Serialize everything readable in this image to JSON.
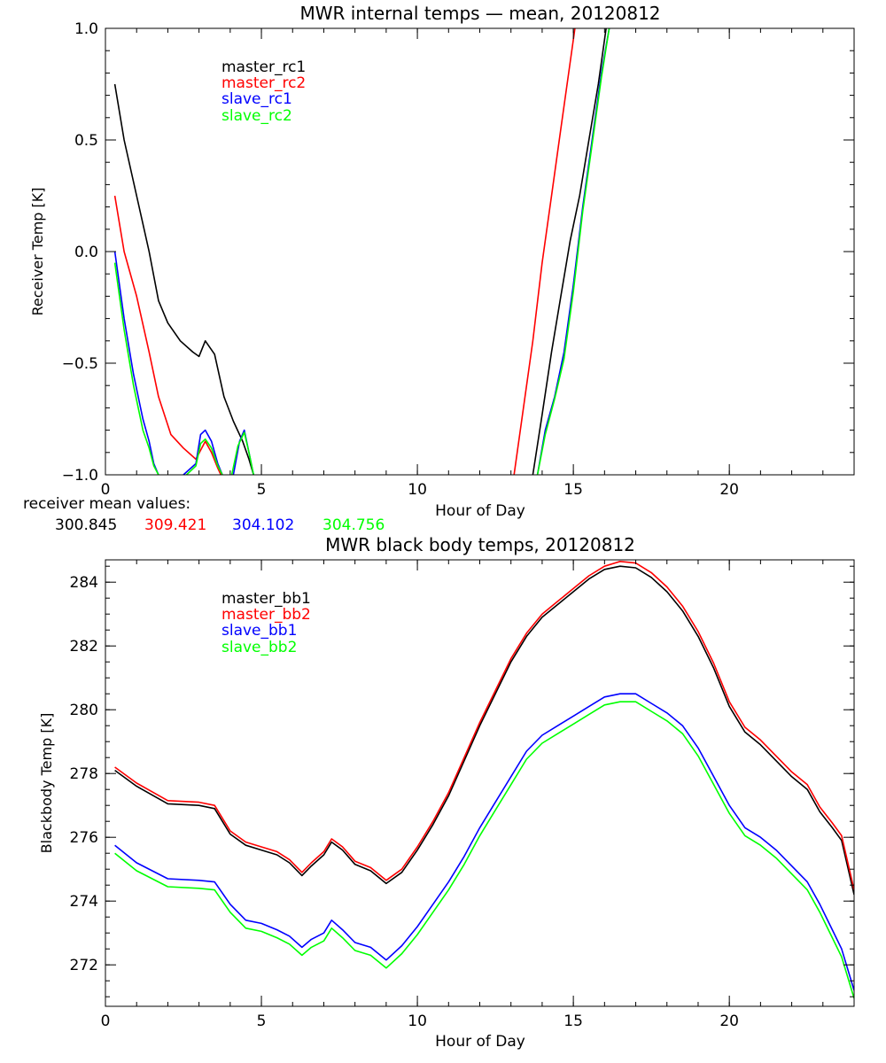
{
  "chart_data": [
    {
      "type": "line",
      "title": "MWR internal temps — mean, 20120812",
      "xlabel": "Hour of Day",
      "ylabel": "Receiver Temp [K]",
      "xlim": [
        0,
        24
      ],
      "ylim": [
        -1.0,
        1.0
      ],
      "x_ticks": [
        0,
        5,
        10,
        15,
        20
      ],
      "y_ticks": [
        -1.0,
        -0.5,
        0.0,
        0.5,
        1.0
      ],
      "y_tick_labels": [
        "−1.0",
        "−0.5",
        "0.0",
        "0.5",
        "1.0"
      ],
      "grid": false,
      "legend_position": "top-left",
      "note": {
        "label": "receiver mean values:",
        "values": [
          "300.845",
          "309.421",
          "304.102",
          "304.756"
        ]
      },
      "series": [
        {
          "name": "master_rc1",
          "color": "#000000",
          "x": [
            0.3,
            0.6,
            1.0,
            1.4,
            1.7,
            2.0,
            2.4,
            2.8,
            3.0,
            3.2,
            3.5,
            3.8,
            4.1,
            4.4,
            4.6,
            4.75,
            null,
            13.7,
            14.0,
            14.3,
            14.6,
            14.9,
            15.2,
            15.5,
            15.8,
            16.05
          ],
          "y": [
            0.75,
            0.5,
            0.25,
            0.0,
            -0.22,
            -0.32,
            -0.4,
            -0.45,
            -0.47,
            -0.4,
            -0.46,
            -0.65,
            -0.76,
            -0.85,
            -0.93,
            -1.0,
            null,
            -1.0,
            -0.73,
            -0.45,
            -0.2,
            0.05,
            0.25,
            0.5,
            0.75,
            1.0
          ]
        },
        {
          "name": "master_rc2",
          "color": "#ff0000",
          "x": [
            0.3,
            0.6,
            1.0,
            1.4,
            1.7,
            2.1,
            2.5,
            2.9,
            3.2,
            3.4,
            3.6,
            3.7,
            null,
            13.1,
            13.4,
            13.7,
            14.0,
            14.3,
            14.6,
            14.9,
            15.05
          ],
          "y": [
            0.25,
            0.0,
            -0.2,
            -0.45,
            -0.65,
            -0.82,
            -0.88,
            -0.93,
            -0.85,
            -0.9,
            -0.97,
            -1.0,
            null,
            -1.0,
            -0.7,
            -0.4,
            -0.05,
            0.25,
            0.55,
            0.85,
            1.0
          ]
        },
        {
          "name": "slave_rc1",
          "color": "#0000ff",
          "x": [
            0.3,
            0.6,
            0.9,
            1.2,
            1.4,
            1.55,
            1.7,
            null,
            2.5,
            2.9,
            3.05,
            3.2,
            3.4,
            3.6,
            3.75,
            null,
            4.1,
            4.3,
            4.45,
            4.6,
            4.75,
            null,
            13.85,
            14.1,
            14.4,
            14.7,
            15.0,
            15.3,
            15.6,
            15.9,
            16.15
          ],
          "y": [
            0.0,
            -0.3,
            -0.55,
            -0.75,
            -0.85,
            -0.95,
            -1.0,
            null,
            -1.0,
            -0.95,
            -0.82,
            -0.8,
            -0.85,
            -0.95,
            -1.0,
            null,
            -1.0,
            -0.85,
            -0.8,
            -0.9,
            -1.0,
            null,
            -1.0,
            -0.8,
            -0.65,
            -0.45,
            -0.15,
            0.2,
            0.5,
            0.8,
            1.0
          ]
        },
        {
          "name": "slave_rc2",
          "color": "#00ff00",
          "x": [
            0.3,
            0.6,
            0.9,
            1.2,
            1.4,
            1.55,
            1.7,
            null,
            2.6,
            2.9,
            3.05,
            3.2,
            3.4,
            3.6,
            3.75,
            null,
            4.05,
            4.25,
            4.45,
            4.6,
            4.75,
            null,
            13.85,
            14.1,
            14.4,
            14.7,
            15.0,
            15.3,
            15.6,
            15.9,
            16.15
          ],
          "y": [
            -0.05,
            -0.35,
            -0.6,
            -0.8,
            -0.88,
            -0.96,
            -1.0,
            null,
            -1.0,
            -0.96,
            -0.86,
            -0.84,
            -0.88,
            -0.96,
            -1.0,
            null,
            -1.0,
            -0.87,
            -0.81,
            -0.9,
            -1.0,
            null,
            -1.0,
            -0.82,
            -0.66,
            -0.48,
            -0.18,
            0.18,
            0.48,
            0.78,
            1.0
          ]
        }
      ]
    },
    {
      "type": "line",
      "title": "MWR black body temps, 20120812",
      "xlabel": "Hour of Day",
      "ylabel": "Blackbody Temp [K]",
      "xlim": [
        0,
        24
      ],
      "ylim": [
        270.7,
        284.7
      ],
      "x_ticks": [
        0,
        5,
        10,
        15,
        20
      ],
      "y_ticks": [
        272,
        274,
        276,
        278,
        280,
        282,
        284
      ],
      "grid": false,
      "legend_position": "top-left",
      "series": [
        {
          "name": "master_bb1",
          "color": "#000000",
          "x": [
            0.3,
            1.0,
            2.0,
            3.0,
            3.5,
            4.0,
            4.5,
            5.0,
            5.5,
            5.9,
            6.3,
            6.6,
            7.0,
            7.25,
            7.6,
            8.0,
            8.5,
            9.0,
            9.5,
            10.0,
            10.5,
            11.0,
            11.5,
            12.0,
            12.5,
            13.0,
            13.5,
            14.0,
            14.5,
            15.0,
            15.5,
            16.0,
            16.5,
            17.0,
            17.5,
            18.0,
            18.5,
            19.0,
            19.5,
            20.0,
            20.5,
            21.0,
            21.5,
            22.0,
            22.5,
            22.9,
            23.3,
            23.6,
            24.0
          ],
          "y": [
            278.1,
            277.6,
            277.05,
            277.0,
            276.9,
            276.1,
            275.75,
            275.6,
            275.45,
            275.2,
            274.8,
            275.1,
            275.45,
            275.85,
            275.6,
            275.15,
            274.95,
            274.55,
            274.9,
            275.6,
            276.4,
            277.3,
            278.4,
            279.5,
            280.5,
            281.5,
            282.3,
            282.9,
            283.3,
            283.7,
            284.1,
            284.4,
            284.5,
            284.45,
            284.15,
            283.7,
            283.1,
            282.3,
            281.3,
            280.1,
            279.3,
            278.9,
            278.4,
            277.9,
            277.5,
            276.8,
            276.3,
            275.9,
            274.2
          ]
        },
        {
          "name": "master_bb2",
          "color": "#ff0000",
          "x": [
            0.3,
            1.0,
            2.0,
            3.0,
            3.5,
            4.0,
            4.5,
            5.0,
            5.5,
            5.9,
            6.3,
            6.6,
            7.0,
            7.25,
            7.6,
            8.0,
            8.5,
            9.0,
            9.5,
            10.0,
            10.5,
            11.0,
            11.5,
            12.0,
            12.5,
            13.0,
            13.5,
            14.0,
            14.5,
            15.0,
            15.5,
            16.0,
            16.5,
            17.0,
            17.5,
            18.0,
            18.5,
            19.0,
            19.5,
            20.0,
            20.5,
            21.0,
            21.5,
            22.0,
            22.5,
            22.9,
            23.3,
            23.6,
            24.0
          ],
          "y": [
            278.2,
            277.7,
            277.15,
            277.1,
            277.0,
            276.2,
            275.85,
            275.7,
            275.55,
            275.3,
            274.9,
            275.2,
            275.55,
            275.95,
            275.7,
            275.25,
            275.05,
            274.65,
            275.0,
            275.7,
            276.5,
            277.4,
            278.5,
            279.6,
            280.6,
            281.6,
            282.4,
            283.0,
            283.4,
            283.8,
            284.2,
            284.5,
            284.65,
            284.6,
            284.3,
            283.85,
            283.25,
            282.45,
            281.45,
            280.25,
            279.45,
            279.05,
            278.55,
            278.05,
            277.65,
            276.95,
            276.45,
            276.05,
            274.35
          ]
        },
        {
          "name": "slave_bb1",
          "color": "#0000ff",
          "x": [
            0.3,
            1.0,
            2.0,
            3.0,
            3.5,
            4.0,
            4.5,
            5.0,
            5.5,
            5.9,
            6.3,
            6.6,
            7.0,
            7.25,
            7.6,
            8.0,
            8.5,
            9.0,
            9.5,
            10.0,
            10.5,
            11.0,
            11.5,
            12.0,
            12.5,
            13.0,
            13.5,
            14.0,
            14.5,
            15.0,
            15.5,
            16.0,
            16.5,
            17.0,
            17.5,
            18.0,
            18.5,
            19.0,
            19.5,
            20.0,
            20.5,
            21.0,
            21.5,
            22.0,
            22.5,
            22.9,
            23.3,
            23.6,
            24.0
          ],
          "y": [
            275.75,
            275.2,
            274.7,
            274.65,
            274.6,
            273.9,
            273.4,
            273.3,
            273.1,
            272.9,
            272.55,
            272.8,
            273.0,
            273.4,
            273.1,
            272.7,
            272.55,
            272.15,
            272.6,
            273.2,
            273.9,
            274.6,
            275.4,
            276.3,
            277.1,
            277.9,
            278.7,
            279.2,
            279.5,
            279.8,
            280.1,
            280.4,
            280.5,
            280.5,
            280.2,
            279.9,
            279.5,
            278.8,
            277.9,
            277.0,
            276.3,
            276.0,
            275.6,
            275.1,
            274.6,
            273.9,
            273.1,
            272.5,
            271.2
          ]
        },
        {
          "name": "slave_bb2",
          "color": "#00ff00",
          "x": [
            0.3,
            1.0,
            2.0,
            3.0,
            3.5,
            4.0,
            4.5,
            5.0,
            5.5,
            5.9,
            6.3,
            6.6,
            7.0,
            7.25,
            7.6,
            8.0,
            8.5,
            9.0,
            9.5,
            10.0,
            10.5,
            11.0,
            11.5,
            12.0,
            12.5,
            13.0,
            13.5,
            14.0,
            14.5,
            15.0,
            15.5,
            16.0,
            16.5,
            17.0,
            17.5,
            18.0,
            18.5,
            19.0,
            19.5,
            20.0,
            20.5,
            21.0,
            21.5,
            22.0,
            22.5,
            22.9,
            23.3,
            23.6,
            24.0
          ],
          "y": [
            275.5,
            274.95,
            274.45,
            274.4,
            274.35,
            273.65,
            273.15,
            273.05,
            272.85,
            272.65,
            272.3,
            272.55,
            272.75,
            273.15,
            272.85,
            272.45,
            272.3,
            271.9,
            272.35,
            272.95,
            273.65,
            274.35,
            275.15,
            276.05,
            276.85,
            277.65,
            278.45,
            278.95,
            279.25,
            279.55,
            279.85,
            280.15,
            280.25,
            280.25,
            279.95,
            279.65,
            279.25,
            278.55,
            277.65,
            276.75,
            276.05,
            275.75,
            275.35,
            274.85,
            274.35,
            273.65,
            272.85,
            272.25,
            270.95
          ]
        }
      ]
    }
  ]
}
